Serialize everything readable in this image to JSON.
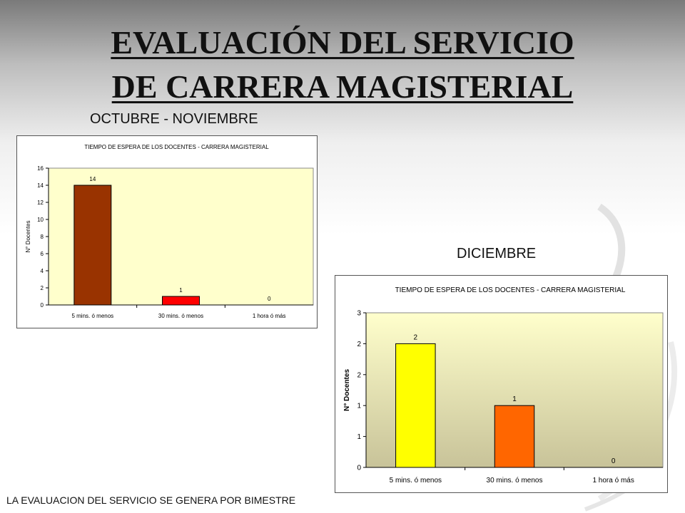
{
  "header": {
    "title_line1": "EVALUACIÓN DEL SERVICIO",
    "title_line2": "DE CARRERA MAGISTERIAL"
  },
  "captions": {
    "period1": "OCTUBRE - NOVIEMBRE",
    "period2": "DICIEMBRE"
  },
  "footer": {
    "note": "LA EVALUACION DEL SERVICIO SE GENERA POR BIMESTRE"
  },
  "chart_data": [
    {
      "type": "bar",
      "title": "TIEMPO DE ESPERA DE LOS DOCENTES - CARRERA MAGISTERIAL",
      "ylabel": "N° Docentes",
      "xlabel": "",
      "categories": [
        "5 mins. ó menos",
        "30 mins. ó menos",
        "1 hora ó más"
      ],
      "values": [
        14,
        1,
        0
      ],
      "data_labels": [
        "14",
        "1",
        "0"
      ],
      "ylim": [
        0,
        16
      ],
      "yticks": [
        "0",
        "2",
        "4",
        "6",
        "8",
        "10",
        "12",
        "14",
        "16"
      ],
      "bar_colors": [
        "#993300",
        "#ff0000",
        "#ff0000"
      ],
      "plot_background": "#ffffcc",
      "grid": false,
      "legend": "none"
    },
    {
      "type": "bar",
      "title": "TIEMPO DE ESPERA DE LOS DOCENTES - CARRERA MAGISTERIAL",
      "ylabel": "N° Docentes",
      "xlabel": "",
      "categories": [
        "5 mins. ó menos",
        "30 mins. ó menos",
        "1 hora ó más"
      ],
      "values": [
        2,
        1,
        0
      ],
      "data_labels": [
        "2",
        "1",
        "0"
      ],
      "ylim": [
        0,
        2.5
      ],
      "yticks": [
        "0",
        "1",
        "1",
        "2",
        "2",
        "3"
      ],
      "bar_colors": [
        "#ffff00",
        "#ff6600",
        "#ff6600"
      ],
      "plot_background": "gradient #ffffcc to #c8c399",
      "grid": false,
      "legend": "none"
    }
  ]
}
